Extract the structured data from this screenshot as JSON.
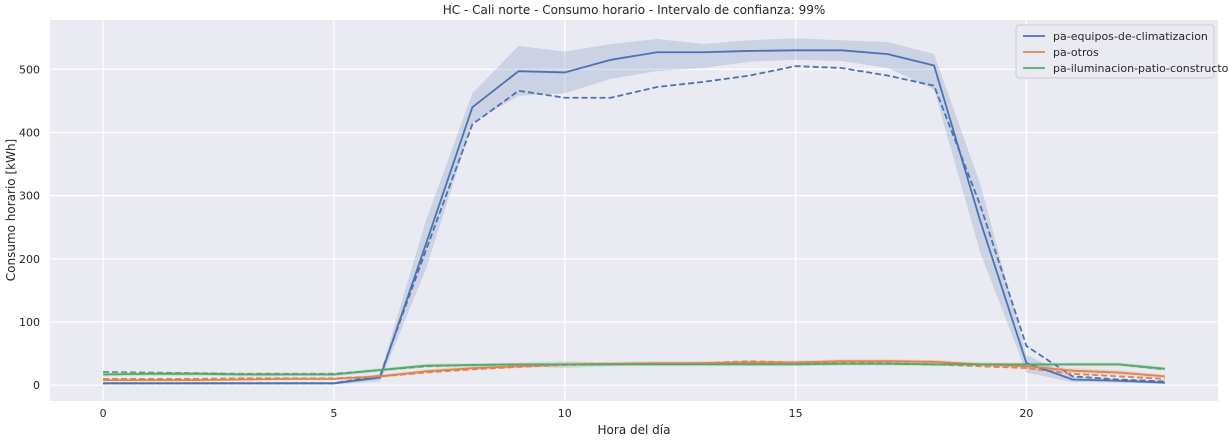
{
  "chart_data": {
    "type": "line",
    "title": "HC - Cali norte - Consumo horario - Intervalo de confianza: 99%",
    "xlabel": "Hora del día",
    "ylabel": "Consumo horario [kWh]",
    "xlim": [
      -1.15,
      24.15
    ],
    "ylim": [
      -25,
      578
    ],
    "xticks": [
      0,
      5,
      10,
      15,
      20
    ],
    "yticks": [
      0,
      100,
      200,
      300,
      400,
      500
    ],
    "grid": true,
    "legend_position": "top-right",
    "x": [
      0,
      1,
      2,
      3,
      4,
      5,
      6,
      7,
      8,
      9,
      10,
      11,
      12,
      13,
      14,
      15,
      16,
      17,
      18,
      19,
      20,
      21,
      22,
      23
    ],
    "series": [
      {
        "name": "pa-equipos-de-climatizacion",
        "color": "#4c72b0",
        "values": [
          3,
          3,
          3,
          3,
          3,
          3,
          12,
          225,
          440,
          497,
          495,
          515,
          527,
          527,
          529,
          530,
          530,
          524,
          506,
          260,
          35,
          9,
          7,
          4
        ],
        "ci_lower": [
          1,
          1,
          1,
          1,
          1,
          1,
          6,
          185,
          415,
          458,
          462,
          485,
          497,
          502,
          512,
          515,
          513,
          502,
          468,
          210,
          20,
          5,
          4,
          2
        ],
        "ci_upper": [
          5,
          5,
          5,
          5,
          5,
          5,
          18,
          262,
          462,
          537,
          528,
          540,
          548,
          540,
          546,
          549,
          546,
          543,
          524,
          318,
          48,
          13,
          10,
          7
        ],
        "reference_line": [
          3,
          3,
          3,
          3,
          3,
          3,
          15,
          215,
          413,
          466,
          455,
          455,
          472,
          480,
          490,
          505,
          502,
          490,
          474,
          285,
          62,
          14,
          9,
          6
        ]
      },
      {
        "name": "pa-otros",
        "color": "#dd8452",
        "values": [
          8,
          8,
          8,
          9,
          10,
          10,
          14,
          22,
          27,
          30,
          33,
          34,
          35,
          35,
          36,
          36,
          38,
          38,
          37,
          33,
          30,
          23,
          20,
          14
        ],
        "ci_lower": [
          6,
          6,
          6,
          7,
          8,
          8,
          11,
          19,
          24,
          27,
          30,
          31,
          32,
          32,
          33,
          33,
          35,
          35,
          34,
          30,
          26,
          19,
          16,
          11
        ],
        "ci_upper": [
          10,
          10,
          10,
          11,
          12,
          12,
          17,
          25,
          30,
          33,
          36,
          37,
          38,
          38,
          39,
          39,
          41,
          41,
          40,
          36,
          34,
          27,
          24,
          17
        ],
        "reference_line": [
          10,
          10,
          10,
          11,
          11,
          11,
          14,
          20,
          25,
          29,
          32,
          33,
          34,
          35,
          38,
          36,
          36,
          35,
          33,
          30,
          27,
          18,
          14,
          10
        ]
      },
      {
        "name": "pa-iluminacion-patio-constructor",
        "color": "#55a868",
        "values": [
          17,
          18,
          18,
          17,
          17,
          17,
          24,
          31,
          32,
          33,
          33,
          33,
          33,
          33,
          33,
          33,
          34,
          34,
          33,
          33,
          33,
          33,
          33,
          26
        ],
        "ci_lower": [
          14,
          15,
          15,
          14,
          14,
          14,
          21,
          28,
          29,
          30,
          27,
          30,
          30,
          30,
          30,
          30,
          31,
          31,
          30,
          30,
          30,
          30,
          30,
          23
        ],
        "ci_upper": [
          20,
          21,
          21,
          20,
          20,
          20,
          27,
          34,
          35,
          36,
          38,
          36,
          36,
          36,
          36,
          36,
          37,
          37,
          36,
          36,
          36,
          36,
          36,
          29
        ],
        "reference_line": [
          21,
          20,
          19,
          18,
          18,
          18,
          24,
          30,
          32,
          33,
          33,
          33,
          34,
          34,
          34,
          34,
          34,
          34,
          33,
          33,
          33,
          33,
          33,
          25
        ]
      }
    ]
  }
}
